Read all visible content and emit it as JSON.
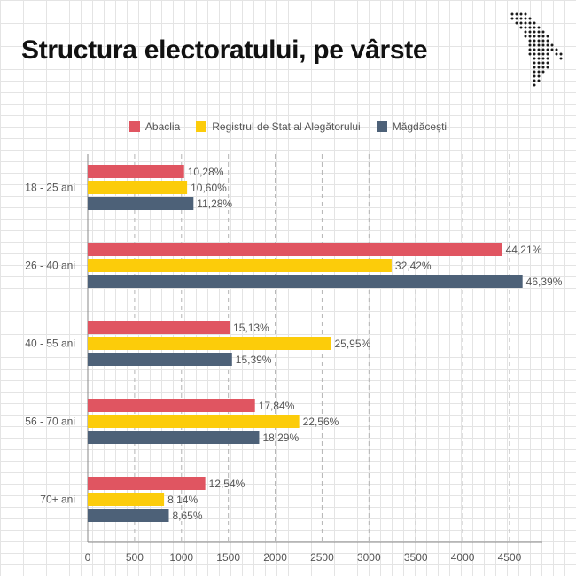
{
  "title": "Structura electoratului, pe vârste",
  "chart_data": {
    "type": "bar",
    "orientation": "horizontal",
    "title": "Structura electoratului, pe vârste",
    "categories": [
      "18 - 25 ani",
      "26 - 40 ani",
      "40 - 55 ani",
      "56 - 70 ani",
      "70+ ani"
    ],
    "series": [
      {
        "name": "Abaclia",
        "color": "#e05561",
        "values": [
          1028,
          4421,
          1513,
          1784,
          1254
        ],
        "labels": [
          "10,28%",
          "44,21%",
          "15,13%",
          "17,84%",
          "12,54%"
        ]
      },
      {
        "name": "Registrul de Stat al Alegătorului",
        "color": "#fccc0a",
        "values": [
          1060,
          3242,
          2595,
          2256,
          814
        ],
        "labels": [
          "10,60%",
          "32,42%",
          "25,95%",
          "22,56%",
          "8,14%"
        ]
      },
      {
        "name": "Măgdăcești",
        "color": "#4d6178",
        "values": [
          1128,
          4639,
          1539,
          1829,
          865
        ],
        "labels": [
          "11,28%",
          "46,39%",
          "15,39%",
          "18,29%",
          "8,65%"
        ]
      }
    ],
    "xlim": [
      0,
      4850
    ],
    "xticks": [
      0,
      500,
      1000,
      1500,
      2000,
      2500,
      3000,
      3500,
      4000,
      4500
    ],
    "xlabel": "",
    "ylabel": "",
    "legend_position": "top",
    "gridlines": "vertical dashed"
  }
}
